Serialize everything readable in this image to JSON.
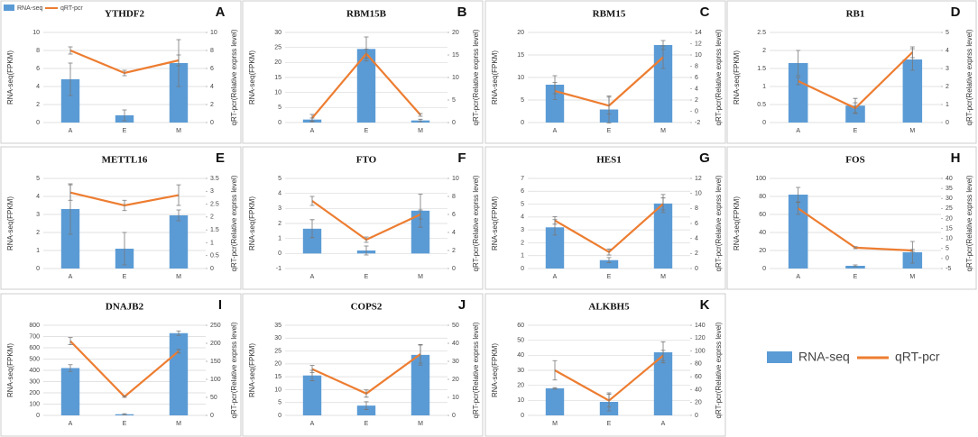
{
  "chart_data": [
    {
      "type": "combo",
      "title": "YTHDF2",
      "label": "A",
      "legend": "upper left",
      "categories": [
        "A",
        "E",
        "M"
      ],
      "ylabel": "RNA-seq(FPKM)",
      "y2label": "qRT-pcr(Relative exprss level)",
      "ylim": [
        0,
        10
      ],
      "yticks": [
        0,
        2,
        4,
        6,
        8,
        10
      ],
      "y2lim": [
        0,
        10
      ],
      "y2ticks": [
        0,
        2,
        4,
        6,
        8,
        10
      ],
      "series": [
        {
          "name": "RNA-seq",
          "color": "#5b9bd5",
          "values": [
            4.8,
            0.8,
            6.6
          ],
          "errors": [
            1.8,
            0.6,
            2.6
          ]
        },
        {
          "name": "qRT-pcr",
          "color": "#ed7d31",
          "axis": "y2",
          "values": [
            8.0,
            5.5,
            6.9
          ],
          "errors": [
            0.4,
            0.3,
            0.6
          ]
        }
      ]
    },
    {
      "type": "combo",
      "title": "RBM15B",
      "label": "B",
      "categories": [
        "A",
        "E",
        "M"
      ],
      "ylabel": "RNA-seq(FPKM)",
      "y2label": "qRT-pcr(Relative exprss level)",
      "ylim": [
        0,
        30
      ],
      "yticks": [
        0,
        5,
        10,
        15,
        20,
        25,
        30
      ],
      "y2lim": [
        0,
        20
      ],
      "y2ticks": [
        0,
        5,
        10,
        15,
        20
      ],
      "series": [
        {
          "name": "RNA-seq",
          "color": "#5b9bd5",
          "values": [
            1.0,
            24.5,
            0.7
          ],
          "errors": [
            0.5,
            4,
            0.4
          ]
        },
        {
          "name": "qRT-pcr",
          "color": "#ed7d31",
          "axis": "y2",
          "values": [
            1.0,
            15.3,
            1.7
          ],
          "errors": [
            0.8,
            1,
            0.3
          ]
        }
      ]
    },
    {
      "type": "combo",
      "title": "RBM15",
      "label": "C",
      "categories": [
        "A",
        "E",
        "M"
      ],
      "ylabel": "RNA-seq(FPKM)",
      "y2label": "qRT-pcr(Relative exprss level)",
      "ylim": [
        0,
        20
      ],
      "yticks": [
        0,
        5,
        10,
        15,
        20
      ],
      "y2lim": [
        -2,
        14
      ],
      "y2ticks": [
        -2,
        0,
        2,
        4,
        6,
        8,
        10,
        12,
        14
      ],
      "series": [
        {
          "name": "RNA-seq",
          "color": "#5b9bd5",
          "values": [
            8.4,
            2.9,
            17.2
          ],
          "errors": [
            2,
            3,
            1
          ]
        },
        {
          "name": "qRT-pcr",
          "color": "#ed7d31",
          "axis": "y2",
          "values": [
            3.6,
            1.0,
            9.6
          ],
          "errors": [
            1.5,
            1.5,
            2
          ]
        }
      ]
    },
    {
      "type": "combo",
      "title": "RB1",
      "label": "D",
      "categories": [
        "A",
        "E",
        "M"
      ],
      "ylabel": "RNA-seq(FPKM)",
      "y2label": "qRT-pcr(Relative exprss level)",
      "ylim": [
        0,
        2.5
      ],
      "yticks": [
        0,
        0.5,
        1,
        1.5,
        2,
        2.5
      ],
      "y2lim": [
        0,
        5
      ],
      "y2ticks": [
        0,
        1,
        2,
        3,
        4,
        5
      ],
      "series": [
        {
          "name": "RNA-seq",
          "color": "#5b9bd5",
          "values": [
            1.65,
            0.47,
            1.75
          ],
          "errors": [
            0.35,
            0.2,
            0.3
          ]
        },
        {
          "name": "qRT-pcr",
          "color": "#ed7d31",
          "axis": "y2",
          "values": [
            2.3,
            0.8,
            3.9
          ],
          "errors": [
            0.2,
            0.3,
            0.3
          ]
        }
      ]
    },
    {
      "type": "combo",
      "title": "METTL16",
      "label": "E",
      "categories": [
        "A",
        "E",
        "M"
      ],
      "ylabel": "RNA-seq(FPKM)",
      "y2label": "qRT-pcr(Relative exprss level)",
      "ylim": [
        0,
        5
      ],
      "yticks": [
        0,
        1,
        2,
        3,
        4,
        5
      ],
      "y2lim": [
        0,
        3.5
      ],
      "y2ticks": [
        0,
        0.5,
        1,
        1.5,
        2,
        2.5,
        3,
        3.5
      ],
      "series": [
        {
          "name": "RNA-seq",
          "color": "#5b9bd5",
          "values": [
            3.3,
            1.1,
            2.95
          ],
          "errors": [
            1.4,
            0.9,
            0.3
          ]
        },
        {
          "name": "qRT-pcr",
          "color": "#ed7d31",
          "axis": "y2",
          "values": [
            2.95,
            2.45,
            2.85
          ],
          "errors": [
            0.3,
            0.2,
            0.4
          ]
        }
      ]
    },
    {
      "type": "combo",
      "title": "FTO",
      "label": "F",
      "categories": [
        "A",
        "E",
        "M"
      ],
      "ylabel": "RNA-seq(FPKM)",
      "y2label": "qRT-pcr(Relative exprss level)",
      "ylim": [
        -1,
        5
      ],
      "yticks": [
        -1,
        0,
        1,
        2,
        3,
        4,
        5
      ],
      "y2lim": [
        0,
        10
      ],
      "y2ticks": [
        0,
        2,
        4,
        6,
        8,
        10
      ],
      "series": [
        {
          "name": "RNA-seq",
          "color": "#5b9bd5",
          "values": [
            1.65,
            0.2,
            2.85
          ],
          "errors": [
            0.6,
            0.3,
            1.1
          ]
        },
        {
          "name": "qRT-pcr",
          "color": "#ed7d31",
          "axis": "y2",
          "values": [
            7.5,
            3.2,
            6.0
          ],
          "errors": [
            0.5,
            0.3,
            0.5
          ]
        }
      ]
    },
    {
      "type": "combo",
      "title": "HES1",
      "label": "G",
      "categories": [
        "A",
        "E",
        "M"
      ],
      "ylabel": "RNA-seq(FPKM)",
      "y2label": "qRT-pcr(Relative exprss level)",
      "ylim": [
        0,
        7
      ],
      "yticks": [
        0,
        1,
        2,
        3,
        4,
        5,
        6,
        7
      ],
      "y2lim": [
        0,
        12
      ],
      "y2ticks": [
        0,
        2,
        4,
        6,
        8,
        10,
        12
      ],
      "series": [
        {
          "name": "RNA-seq",
          "color": "#5b9bd5",
          "values": [
            3.2,
            0.65,
            5.05
          ],
          "errors": [
            0.6,
            0.2,
            0.7
          ]
        },
        {
          "name": "qRT-pcr",
          "color": "#ed7d31",
          "axis": "y2",
          "values": [
            6.4,
            2.2,
            8.6
          ],
          "errors": [
            0.5,
            0.4,
            0.8
          ]
        }
      ]
    },
    {
      "type": "combo",
      "title": "FOS",
      "label": "H",
      "categories": [
        "A",
        "E",
        "M"
      ],
      "ylabel": "RNA-seq(FPKM)",
      "y2label": "qRT-pcr(Relative exprss level)",
      "ylim": [
        0,
        100
      ],
      "yticks": [
        0,
        20,
        40,
        60,
        80,
        100
      ],
      "y2lim": [
        -5,
        40
      ],
      "y2ticks": [
        -5,
        0,
        5,
        10,
        15,
        20,
        25,
        30,
        35,
        40
      ],
      "series": [
        {
          "name": "RNA-seq",
          "color": "#5b9bd5",
          "values": [
            82,
            3,
            18
          ],
          "errors": [
            8,
            1,
            12
          ]
        },
        {
          "name": "qRT-pcr",
          "color": "#ed7d31",
          "axis": "y2",
          "values": [
            25,
            5.4,
            4.0
          ],
          "errors": [
            3,
            0.5,
            0.5
          ]
        }
      ]
    },
    {
      "type": "combo",
      "title": "DNAJB2",
      "label": "I",
      "categories": [
        "A",
        "E",
        "M"
      ],
      "ylabel": "RNA-seq(FPKM)",
      "y2label": "qRT-pcr(Relative exprss level)",
      "ylim": [
        0,
        800
      ],
      "yticks": [
        0,
        100,
        200,
        300,
        400,
        500,
        600,
        700,
        800
      ],
      "y2lim": [
        0,
        250
      ],
      "y2ticks": [
        0,
        50,
        100,
        150,
        200,
        250
      ],
      "series": [
        {
          "name": "RNA-seq",
          "color": "#5b9bd5",
          "values": [
            420,
            10,
            730
          ],
          "errors": [
            30,
            5,
            20
          ]
        },
        {
          "name": "qRT-pcr",
          "color": "#ed7d31",
          "axis": "y2",
          "values": [
            206,
            52,
            178
          ],
          "errors": [
            10,
            2,
            5
          ]
        }
      ]
    },
    {
      "type": "combo",
      "title": "COPS2",
      "label": "J",
      "categories": [
        "A",
        "E",
        "M"
      ],
      "ylabel": "RNA-seq(FPKM)",
      "y2label": "qRT-pcr(Relative exprss level)",
      "ylim": [
        0,
        35
      ],
      "yticks": [
        0,
        5,
        10,
        15,
        20,
        25,
        30,
        35
      ],
      "y2lim": [
        0,
        50
      ],
      "y2ticks": [
        0,
        10,
        20,
        30,
        40,
        50
      ],
      "series": [
        {
          "name": "RNA-seq",
          "color": "#5b9bd5",
          "values": [
            15.5,
            3.8,
            23.5
          ],
          "errors": [
            2,
            1.5,
            4
          ]
        },
        {
          "name": "qRT-pcr",
          "color": "#ed7d31",
          "axis": "y2",
          "values": [
            25.7,
            12.1,
            34
          ],
          "errors": [
            2,
            2,
            5
          ]
        }
      ]
    },
    {
      "type": "combo",
      "title": "ALKBH5",
      "label": "K",
      "categories": [
        "M",
        "E",
        "A"
      ],
      "ylabel": "RNA-seq(FPKM)",
      "y2label": "qRT-pcr(Relative exprss level)",
      "ylim": [
        0,
        60
      ],
      "yticks": [
        0,
        10,
        20,
        30,
        40,
        50,
        60
      ],
      "y2lim": [
        0,
        140
      ],
      "y2ticks": [
        0,
        20,
        40,
        60,
        80,
        100,
        120,
        140
      ],
      "series": [
        {
          "name": "RNA-seq",
          "color": "#5b9bd5",
          "values": [
            18,
            9,
            42
          ],
          "errors": [
            0.5,
            6,
            7
          ]
        },
        {
          "name": "qRT-pcr",
          "color": "#ed7d31",
          "axis": "y2",
          "values": [
            70,
            23,
            93
          ],
          "errors": [
            15,
            10,
            8
          ]
        }
      ]
    }
  ]
}
